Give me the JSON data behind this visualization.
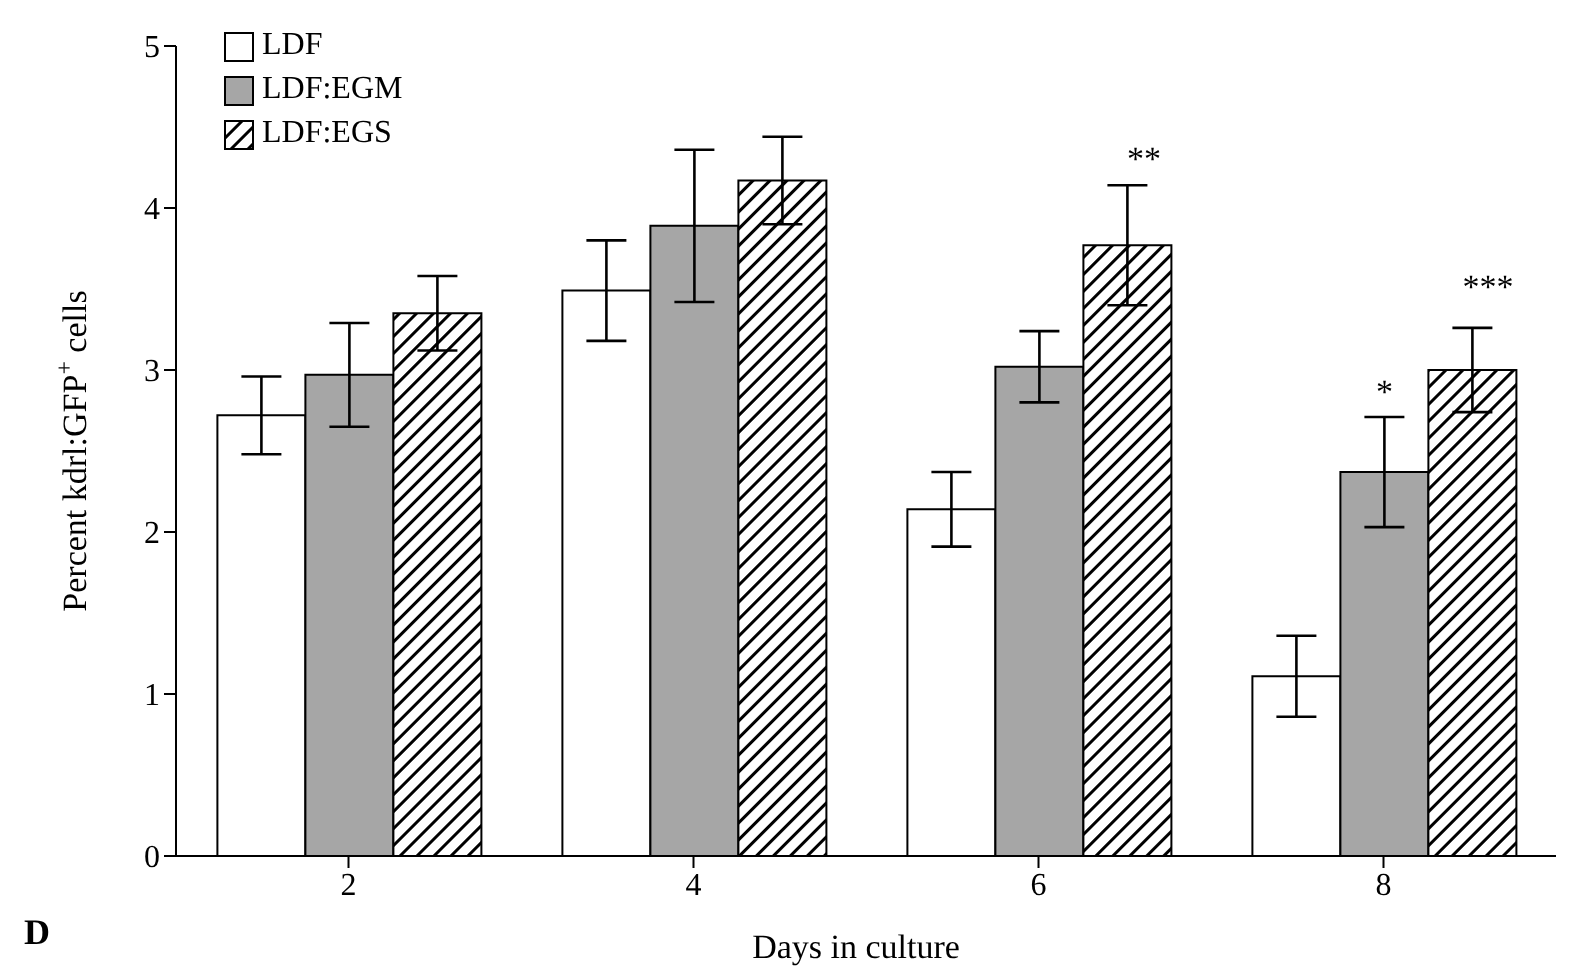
{
  "chart_data": {
    "type": "bar",
    "xlabel": "Days in culture",
    "ylabel": "Percent kdrl:GFP$^{+}$ cells",
    "categories": [
      "2",
      "4",
      "6",
      "8"
    ],
    "series": [
      {
        "name": "LDF",
        "color": "#ffffff",
        "values": [
          2.72,
          3.49,
          2.14,
          1.11
        ],
        "errors": [
          0.24,
          0.31,
          0.23,
          0.25
        ]
      },
      {
        "name": "LDF:EGM",
        "color": "#a6a6a6",
        "values": [
          2.97,
          3.89,
          3.02,
          2.37
        ],
        "errors": [
          0.32,
          0.47,
          0.22,
          0.34
        ]
      },
      {
        "name": "LDF:EGS",
        "type": "bar",
        "color": "#000000",
        "values": [
          3.35,
          4.17,
          3.77,
          3.0
        ],
        "errors": [
          0.23,
          0.27,
          0.37,
          0.26
        ]
      }
    ],
    "ylim": [
      0,
      5
    ],
    "yticks": [
      0,
      1,
      2,
      3,
      4,
      5
    ],
    "grid": false,
    "legend": "top left",
    "annotations": [
      {
        "text": "*",
        "x": "8",
        "y": 2.37
      },
      "**",
      "***",
      "D"
    ]
  }
}
